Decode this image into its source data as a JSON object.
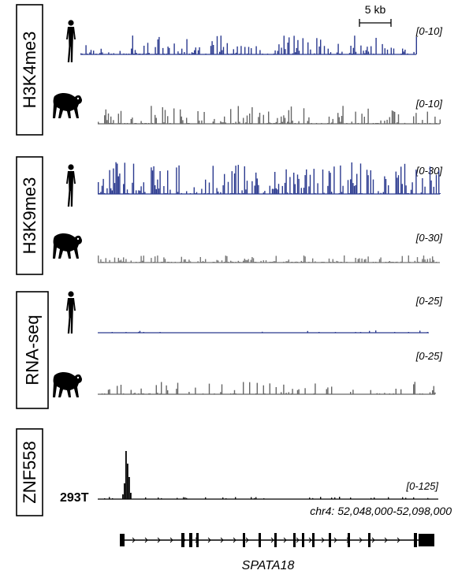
{
  "scale_bar": {
    "label": "5 kb"
  },
  "groups": [
    {
      "label": "H3K4me3",
      "tracks": [
        {
          "species": "human",
          "range": "[0-10]",
          "color": "#2b3a8f",
          "seed": 11,
          "density": 0.55,
          "max": 0.55
        },
        {
          "species": "chimpanzee",
          "range": "[0-10]",
          "color": "#666666",
          "seed": 23,
          "density": 0.5,
          "max": 0.6
        }
      ]
    },
    {
      "label": "H3K9me3",
      "tracks": [
        {
          "species": "human",
          "range": "[0-30]",
          "color": "#2b3a8f",
          "seed": 37,
          "density": 0.6,
          "max": 0.85
        },
        {
          "species": "chimpanzee",
          "range": "[0-30]",
          "color": "#777777",
          "seed": 41,
          "density": 0.5,
          "max": 0.3
        }
      ]
    },
    {
      "label": "RNA-seq",
      "tracks": [
        {
          "species": "human",
          "range": "[0-25]",
          "color": "#2b3a8f",
          "seed": 53,
          "density": 0.08,
          "max": 0.15
        },
        {
          "species": "chimpanzee",
          "range": "[0-25]",
          "color": "#666666",
          "seed": 67,
          "density": 0.25,
          "max": 0.5
        }
      ]
    }
  ],
  "znf": {
    "label": "ZNF558",
    "cell_line": "293T",
    "range": "[0-125]"
  },
  "locus": "chr4: 52,048,000-52,098,000",
  "gene": "SPATA18"
}
